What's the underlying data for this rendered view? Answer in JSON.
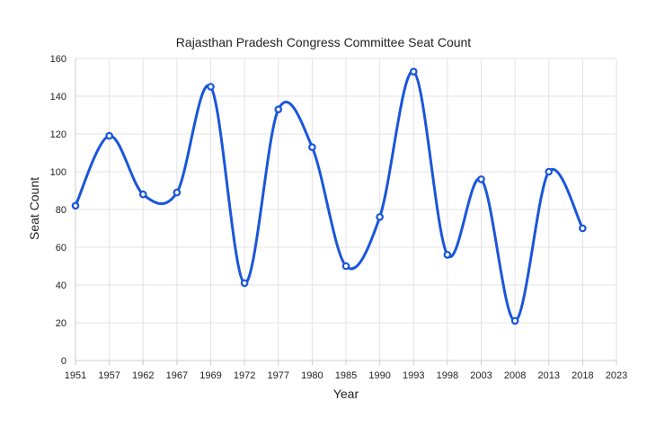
{
  "chart_data": {
    "type": "line",
    "title": "Rajasthan Pradesh Congress Committee Seat Count",
    "xlabel": "Year",
    "ylabel": "Seat Count",
    "x": [
      "1951",
      "1957",
      "1962",
      "1967",
      "1969",
      "1972",
      "1977",
      "1980",
      "1985",
      "1990",
      "1993",
      "1998",
      "2003",
      "2008",
      "2013",
      "2018",
      "2023"
    ],
    "series": [
      {
        "values": [
          82,
          119,
          88,
          89,
          145,
          41,
          133,
          113,
          50,
          76,
          153,
          56,
          96,
          21,
          100,
          70,
          null
        ],
        "color": "#1a56db"
      }
    ],
    "ylim": [
      0,
      160
    ],
    "yticks": [
      "0",
      "20",
      "40",
      "60",
      "80",
      "100",
      "120",
      "140",
      "160"
    ],
    "grid": true,
    "curve": "smooth"
  }
}
